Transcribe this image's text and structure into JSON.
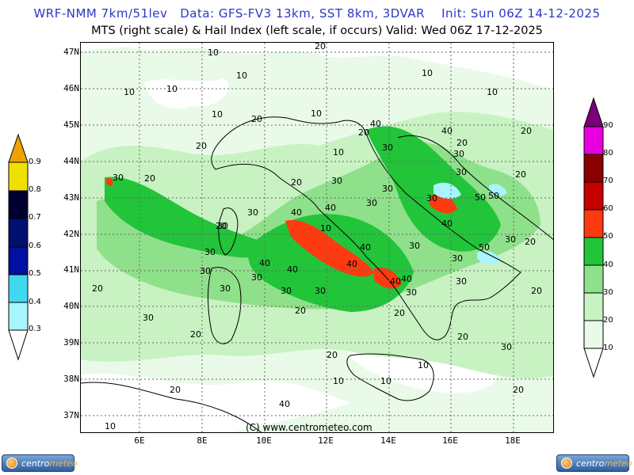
{
  "header": {
    "line1": "WRF-NMM 7km/51lev   Data: GFS-FV3 13km, SST 8km, 3DVAR    Init: Sun 06Z 14-12-2025",
    "line2": "MTS (right scale) & Hail Index (left scale, if occurs) Valid: Wed 06Z 17-12-2025"
  },
  "map": {
    "lat_labels": [
      "47N",
      "46N",
      "45N",
      "44N",
      "43N",
      "42N",
      "41N",
      "40N",
      "39N",
      "38N",
      "37N"
    ],
    "lon_labels": [
      "6E",
      "8E",
      "10E",
      "12E",
      "14E",
      "16E",
      "18E"
    ],
    "copyright": "(C) www.centrometeo.com",
    "contour_labels": [
      "10",
      "10",
      "10",
      "10",
      "10",
      "10",
      "10",
      "10",
      "10",
      "10",
      "10",
      "10",
      "10",
      "10",
      "20",
      "20",
      "20",
      "20",
      "20",
      "20",
      "20",
      "20",
      "20",
      "20",
      "20",
      "20",
      "20",
      "20",
      "20",
      "20",
      "20",
      "20",
      "20",
      "20",
      "30",
      "30",
      "30",
      "30",
      "30",
      "30",
      "30",
      "30",
      "30",
      "30",
      "30",
      "30",
      "30",
      "30",
      "30",
      "30",
      "30",
      "30",
      "30",
      "30",
      "30",
      "30",
      "30",
      "40",
      "40",
      "40",
      "40",
      "40",
      "40",
      "40",
      "40",
      "40",
      "40",
      "40",
      "40",
      "50",
      "50",
      "50"
    ]
  },
  "mts_scale": {
    "labels": [
      "10",
      "20",
      "30",
      "40",
      "50",
      "60",
      "70",
      "80",
      "90"
    ],
    "colors": [
      "#e9fbe8",
      "#c8f2c2",
      "#8fe08a",
      "#22c43a",
      "#ff3a10",
      "#c40000",
      "#8a0000",
      "#e800e0",
      "#7a007a"
    ]
  },
  "hail_scale": {
    "labels": [
      "0.3",
      "0.4",
      "0.5",
      "0.6",
      "0.7",
      "0.8",
      "0.9"
    ],
    "colors": [
      "#a8f4ff",
      "#40d8ee",
      "#0010a0",
      "#001070",
      "#000030",
      "#f0e000",
      "#f0a000"
    ]
  },
  "logos": {
    "left": {
      "text_a": "centro",
      "text_b": "meteo"
    },
    "right": {
      "text_a": "centro",
      "text_b": "meteo"
    }
  }
}
